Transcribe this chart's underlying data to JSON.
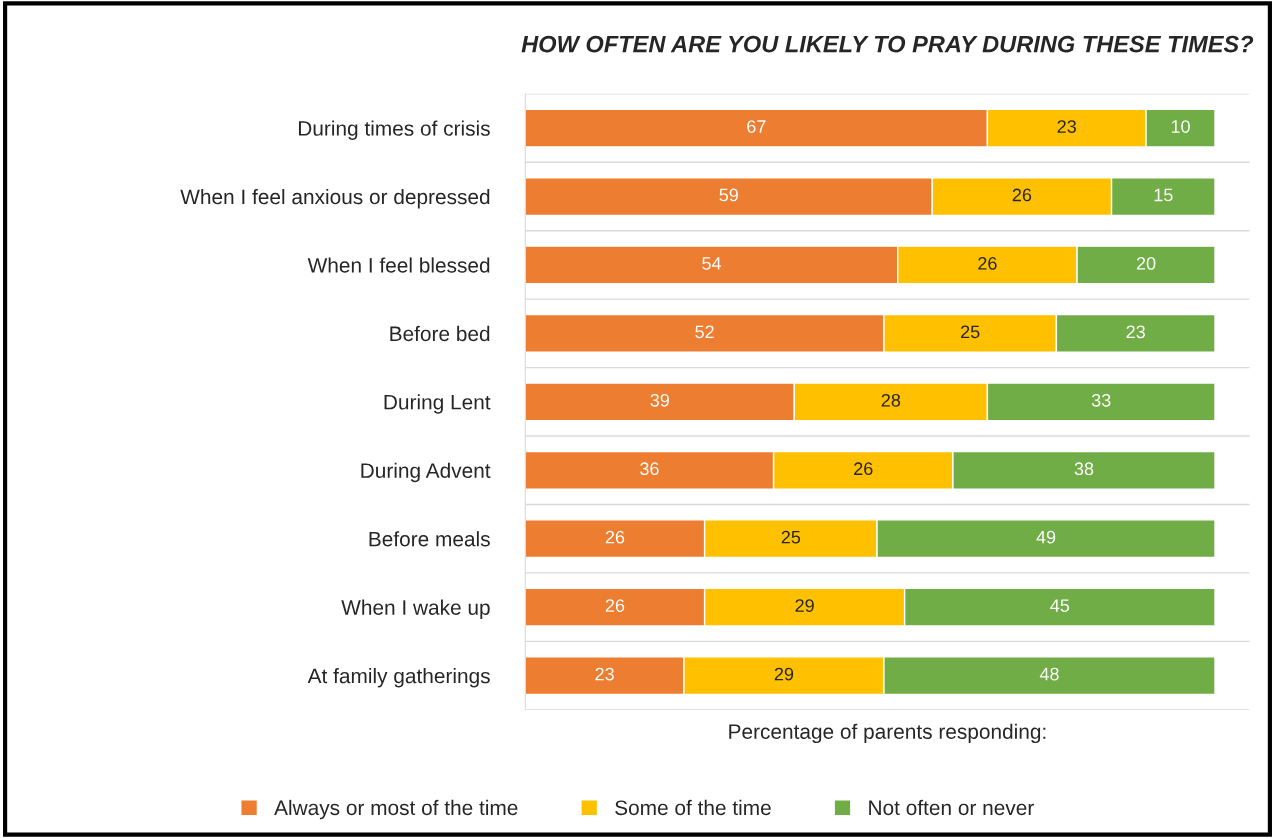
{
  "chart_data": {
    "type": "bar",
    "orientation": "horizontal",
    "stacked": true,
    "title": "HOW OFTEN ARE YOU LIKELY TO PRAY DURING THESE TIMES?",
    "xlabel": "Percentage of parents responding:",
    "categories": [
      "During times of crisis",
      "When I feel anxious or depressed",
      "When I feel blessed",
      "Before bed",
      "During Lent",
      "During Advent",
      "Before meals",
      "When I wake up",
      "At family gatherings"
    ],
    "series": [
      {
        "name": "Always or most of the time",
        "color": "#ed7d31",
        "values": [
          67,
          59,
          54,
          52,
          39,
          36,
          26,
          26,
          23
        ]
      },
      {
        "name": "Some of the time",
        "color": "#ffc000",
        "values": [
          23,
          26,
          26,
          25,
          28,
          26,
          25,
          29,
          29
        ]
      },
      {
        "name": "Not often or never",
        "color": "#70ad47",
        "values": [
          10,
          15,
          20,
          23,
          33,
          38,
          49,
          45,
          48
        ]
      }
    ],
    "data_labels": true,
    "grid": "y",
    "legend": "bottom",
    "tick_labels": "y"
  }
}
